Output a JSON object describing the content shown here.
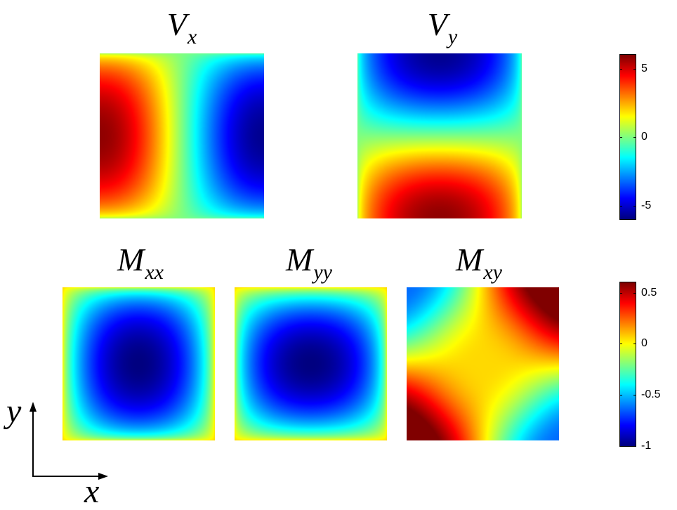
{
  "chart_data": [
    {
      "type": "heatmap",
      "title": "V",
      "title_sub": "x",
      "field": "vx",
      "colormap": "jet",
      "clim": [
        -6,
        6
      ]
    },
    {
      "type": "heatmap",
      "title": "V",
      "title_sub": "y",
      "field": "vy",
      "colormap": "jet",
      "clim": [
        -6,
        6
      ]
    },
    {
      "type": "heatmap",
      "title": "M",
      "title_sub": "xx",
      "field": "mxx",
      "colormap": "jet",
      "clim": [
        -1,
        0.6
      ]
    },
    {
      "type": "heatmap",
      "title": "M",
      "title_sub": "yy",
      "field": "myy",
      "colormap": "jet",
      "clim": [
        -1,
        0.6
      ]
    },
    {
      "type": "heatmap",
      "title": "M",
      "title_sub": "xy",
      "field": "mxy",
      "colormap": "jet",
      "clim": [
        -1,
        0.6
      ]
    }
  ],
  "colorbars": [
    {
      "range": [
        -6,
        6
      ],
      "ticks": [
        5,
        0,
        -5
      ],
      "tick_labels": [
        "5",
        "0",
        "-5"
      ]
    },
    {
      "range": [
        -1,
        0.6
      ],
      "ticks": [
        0.5,
        0,
        -0.5,
        -1
      ],
      "tick_labels": [
        "0.5",
        "0",
        "-0.5",
        "-1"
      ]
    }
  ],
  "axes_indicator": {
    "x_label": "x",
    "y_label": "y"
  }
}
